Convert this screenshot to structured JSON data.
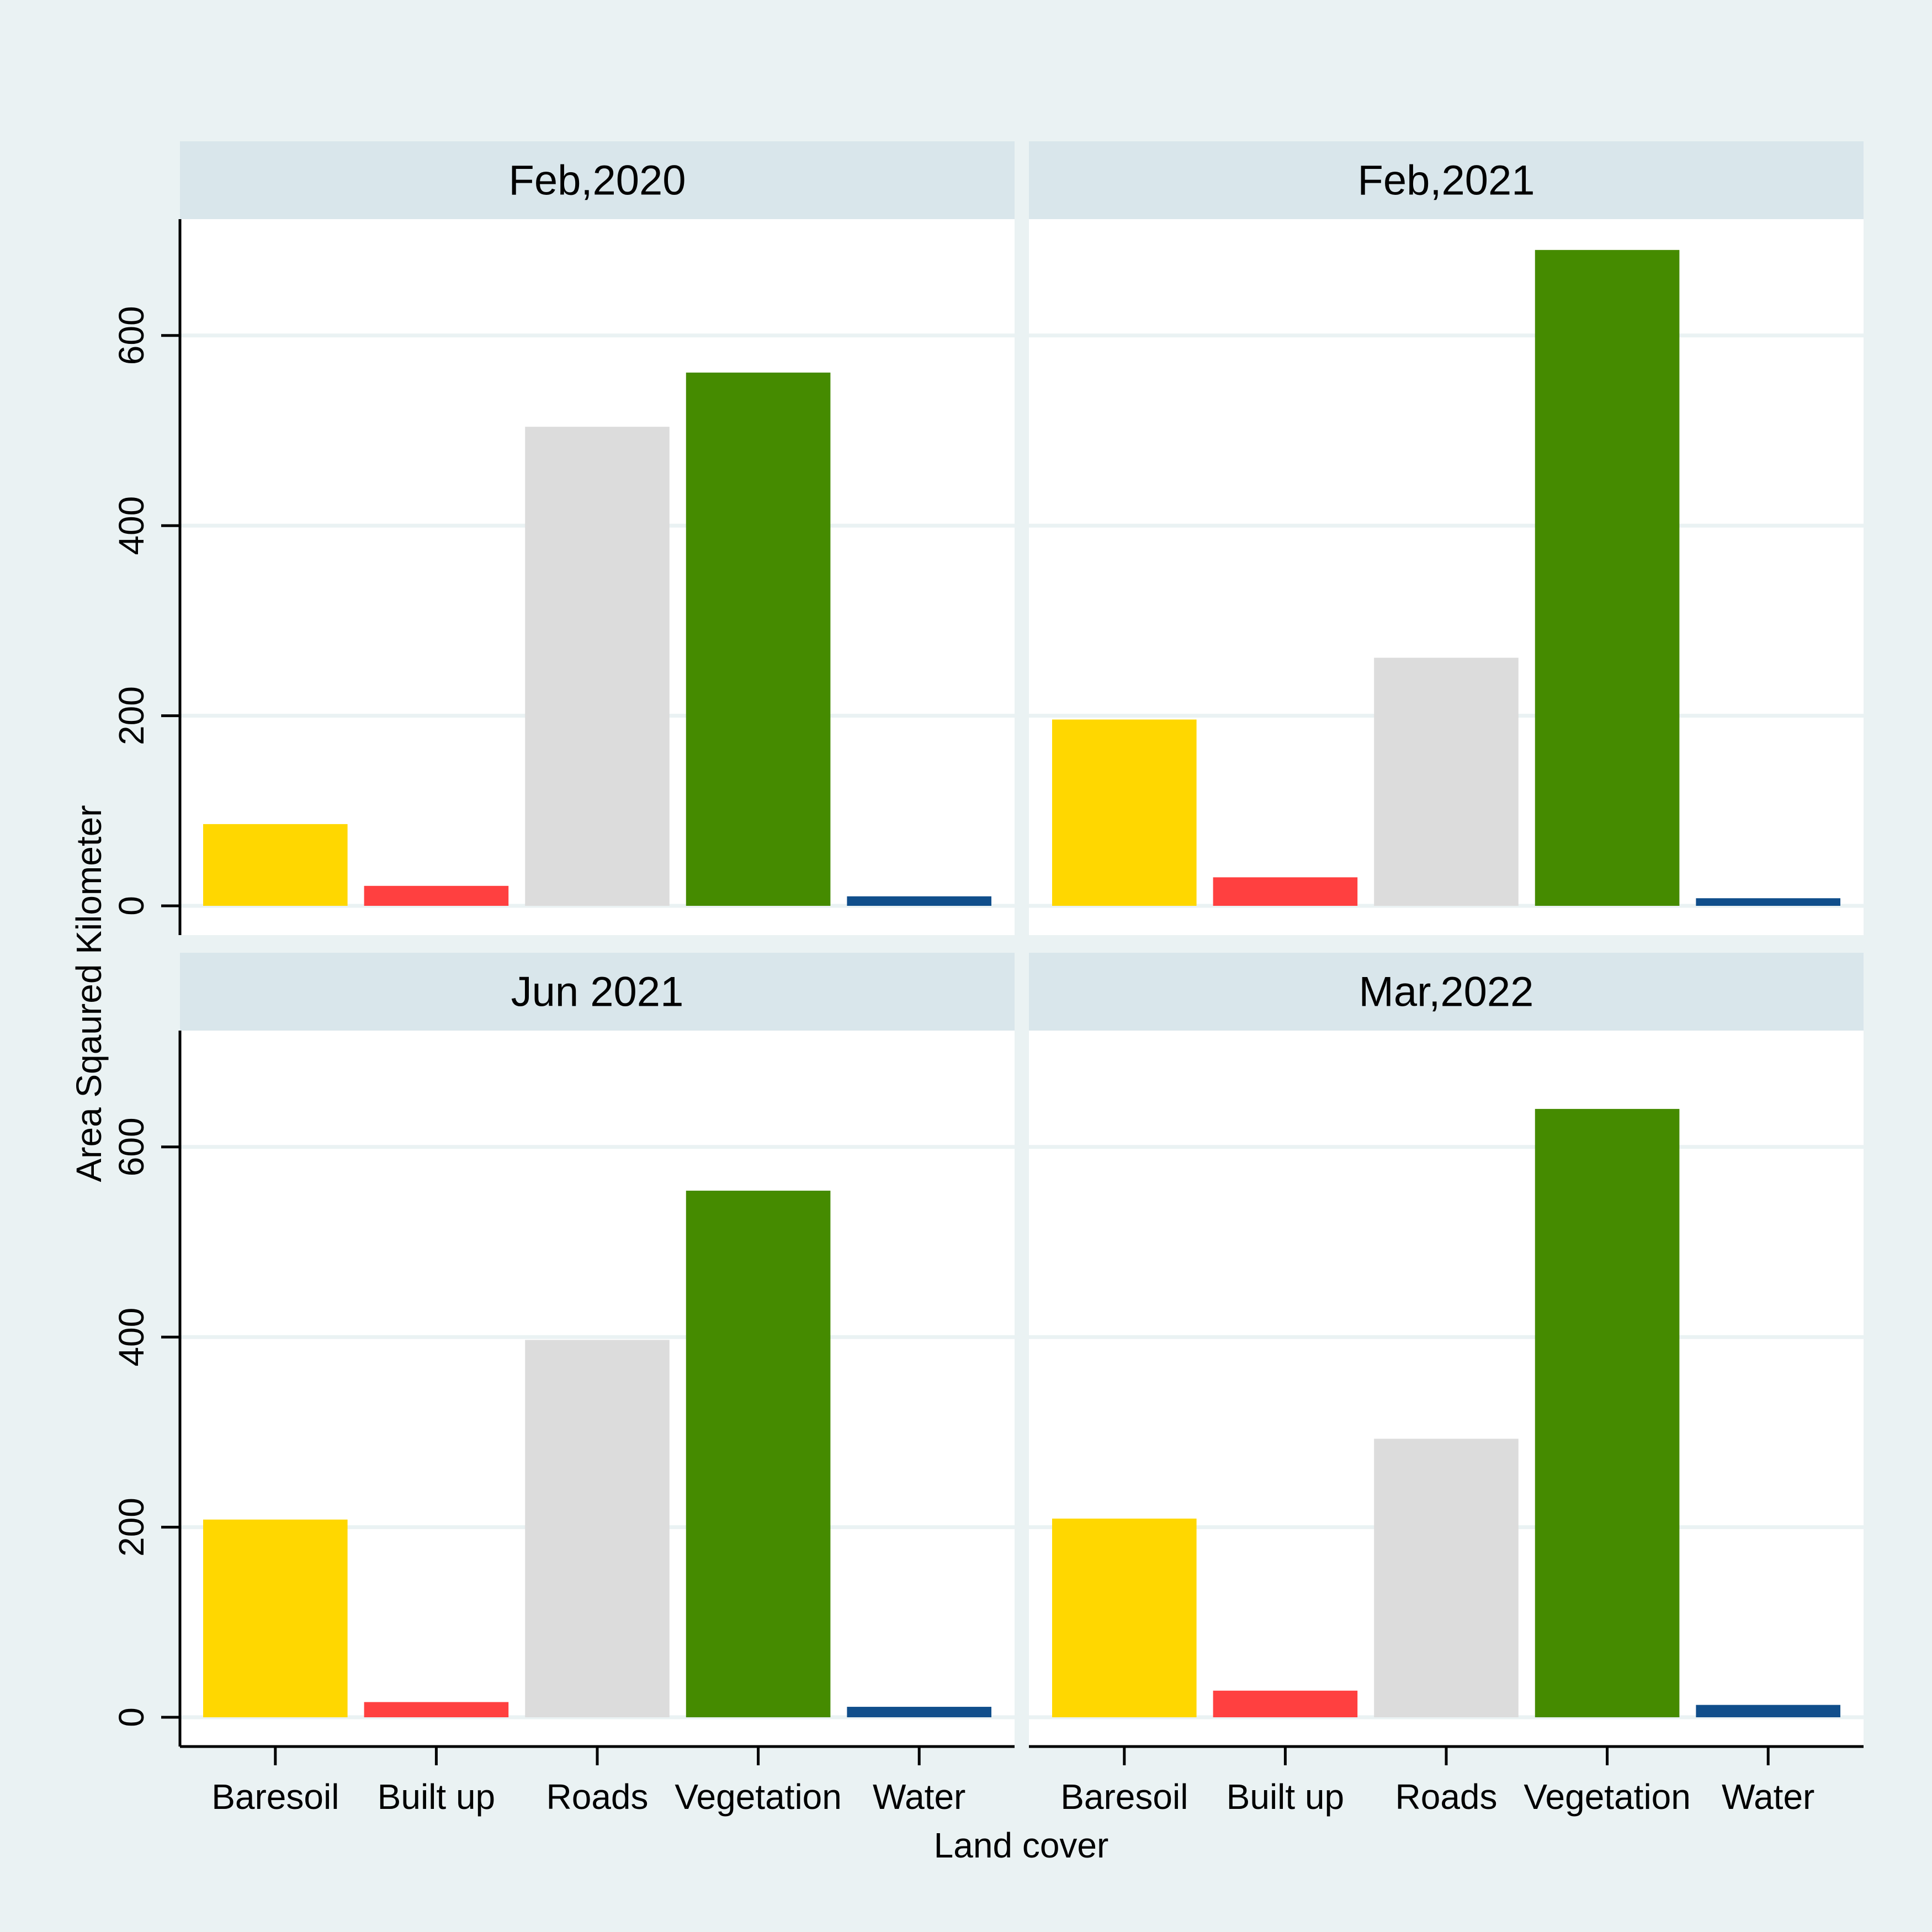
{
  "chart_data": {
    "type": "bar",
    "xlabel": "Land cover",
    "ylabel": "Area Sqaured Kilometer",
    "ylim": [
      0,
      720
    ],
    "yticks": [
      0,
      200,
      400,
      600
    ],
    "grid": true,
    "categories": [
      "Baresoil",
      "Built up",
      "Roads",
      "Vegetation",
      "Water"
    ],
    "colors": {
      "Baresoil": "#ffd700",
      "Built up": "#ff4040",
      "Roads": "#dcdcdc",
      "Vegetation": "#458b00",
      "Water": "#104e8b"
    },
    "panels": [
      {
        "title": "Feb,2020",
        "values": [
          86,
          21,
          504,
          561,
          10
        ]
      },
      {
        "title": "Feb,2021",
        "values": [
          196,
          30,
          261,
          690,
          8
        ]
      },
      {
        "title": "Jun 2021",
        "values": [
          208,
          16,
          397,
          554,
          11
        ]
      },
      {
        "title": "Mar,2022",
        "values": [
          209,
          28,
          293,
          640,
          13
        ]
      }
    ]
  }
}
